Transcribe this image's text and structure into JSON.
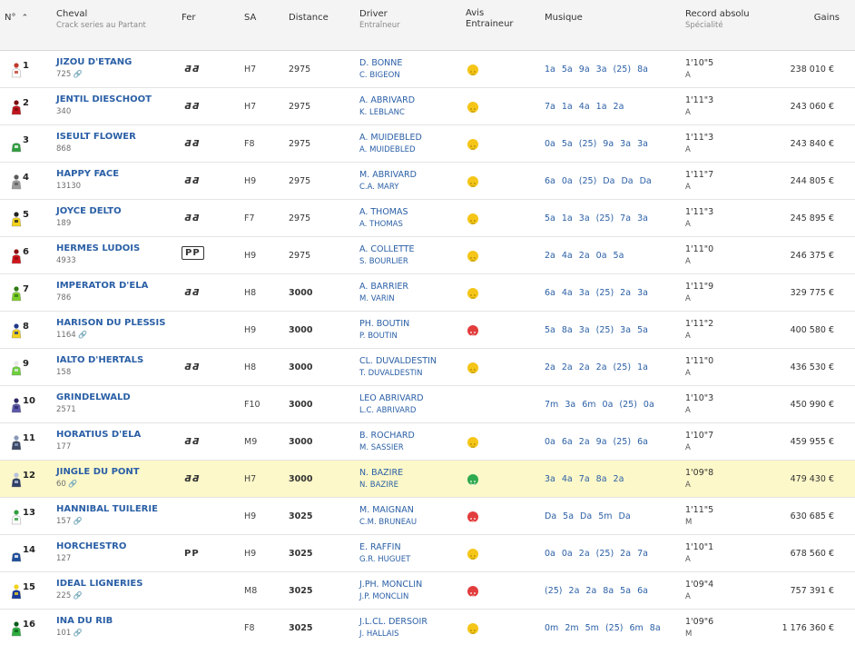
{
  "header": {
    "num_label": "N°",
    "horse_label": "Cheval",
    "horse_sub": "Crack series au Partant",
    "fer_label": "Fer",
    "sa_label": "SA",
    "distance_label": "Distance",
    "driver_label": "Driver",
    "driver_sub": "Entraîneur",
    "avis_label": "Avis",
    "avis_label2": "Entraineur",
    "musique_label": "Musique",
    "record_label": "Record absolu",
    "record_sub": "Spécialité",
    "gains_label": "Gains"
  },
  "colors": {
    "link": "#2a5fa6",
    "highlight": "#fdf8c9",
    "neutral": "#f5c518",
    "negative": "#e23d3d",
    "positive": "#2eaa4f"
  },
  "rows": [
    {
      "num": "1",
      "horse": "JIZOU D'ETANG",
      "sub": "725",
      "clip": "🔗",
      "fer": "ƋƋ",
      "fer_style": "italic",
      "sa": "H7",
      "distance": "2975",
      "bold": false,
      "driver": "D. BONNE",
      "trainer": "C. BIGEON",
      "avis": "neutral",
      "musique": "1a 5a 9a 3a (25) 8a",
      "record": "1'10\"5",
      "spec": "A",
      "gains": "238 010 €",
      "jockey_color": "#ffffff",
      "jockey_accent": "#c0392b"
    },
    {
      "num": "2",
      "horse": "JENTIL DIESCHOOT",
      "sub": "340",
      "clip": "",
      "fer": "ƋƋ",
      "fer_style": "italic",
      "sa": "H7",
      "distance": "2975",
      "bold": false,
      "driver": "A. ABRIVARD",
      "trainer": "K. LEBLANC",
      "avis": "neutral",
      "musique": "7a 1a 4a 1a 2a",
      "record": "1'11\"3",
      "spec": "A",
      "gains": "243 060 €",
      "jockey_color": "#c0161c",
      "jockey_accent": "#7a0d10"
    },
    {
      "num": "3",
      "horse": "ISEULT FLOWER",
      "sub": "868",
      "clip": "",
      "fer": "ƋƋ",
      "fer_style": "italic",
      "sa": "F8",
      "distance": "2975",
      "bold": false,
      "driver": "A. MUIDEBLED",
      "trainer": "A. MUIDEBLED",
      "avis": "neutral",
      "musique": "0a 5a (25) 9a 3a 3a",
      "record": "1'11\"3",
      "spec": "A",
      "gains": "243 840 €",
      "jockey_color": "#2f9e3f",
      "jockey_accent": "#ffffff"
    },
    {
      "num": "4",
      "horse": "HAPPY FACE",
      "sub": "13130",
      "clip": "",
      "fer": "ƋƋ",
      "fer_style": "italic",
      "sa": "H9",
      "distance": "2975",
      "bold": false,
      "driver": "M. ABRIVARD",
      "trainer": "C.A. MARY",
      "avis": "neutral",
      "musique": "6a 0a (25) Da Da Da",
      "record": "1'11\"7",
      "spec": "A",
      "gains": "244 805 €",
      "jockey_color": "#9a9a9a",
      "jockey_accent": "#5a5a5a"
    },
    {
      "num": "5",
      "horse": "JOYCE DELTO",
      "sub": "189",
      "clip": "",
      "fer": "ƋƋ",
      "fer_style": "italic",
      "sa": "F7",
      "distance": "2975",
      "bold": false,
      "driver": "A. THOMAS",
      "trainer": "A. THOMAS",
      "avis": "neutral",
      "musique": "5a 1a 3a (25) 7a 3a",
      "record": "1'11\"3",
      "spec": "A",
      "gains": "245 895 €",
      "jockey_color": "#f2d21b",
      "jockey_accent": "#222222"
    },
    {
      "num": "6",
      "horse": "HERMES LUDOIS",
      "sub": "4933",
      "clip": "",
      "fer": "PP",
      "fer_style": "boxed",
      "sa": "H9",
      "distance": "2975",
      "bold": false,
      "driver": "A. COLLETTE",
      "trainer": "S. BOURLIER",
      "avis": "neutral",
      "musique": "2a 4a 2a 0a 5a",
      "record": "1'11\"0",
      "spec": "A",
      "gains": "246 375 €",
      "jockey_color": "#d0161c",
      "jockey_accent": "#8c0d10"
    },
    {
      "num": "7",
      "horse": "IMPERATOR D'ELA",
      "sub": "786",
      "clip": "",
      "fer": "ƋƋ",
      "fer_style": "italic",
      "sa": "H8",
      "distance": "3000",
      "bold": true,
      "driver": "A. BARRIER",
      "trainer": "M. VARIN",
      "avis": "neutral",
      "musique": "6a 4a 3a (25) 2a 3a",
      "record": "1'11\"9",
      "spec": "A",
      "gains": "329 775 €",
      "jockey_color": "#7fcf2a",
      "jockey_accent": "#2f7a14"
    },
    {
      "num": "8",
      "horse": "HARISON DU PLESSIS",
      "sub": "1164",
      "clip": "🔗",
      "fer": "",
      "fer_style": "none",
      "sa": "H9",
      "distance": "3000",
      "bold": true,
      "driver": "PH. BOUTIN",
      "trainer": "P. BOUTIN",
      "avis": "negative",
      "musique": "5a 8a 3a (25) 3a 5a",
      "record": "1'11\"2",
      "spec": "A",
      "gains": "400 580 €",
      "jockey_color": "#f2d21b",
      "jockey_accent": "#1d3a8a"
    },
    {
      "num": "9",
      "horse": "IALTO D'HERTALS",
      "sub": "158",
      "clip": "",
      "fer": "ƋƋ",
      "fer_style": "italic",
      "sa": "H8",
      "distance": "3000",
      "bold": true,
      "driver": "CL. DUVALDESTIN",
      "trainer": "T. DUVALDESTIN",
      "avis": "neutral",
      "musique": "2a 2a 2a 2a (25) 1a",
      "record": "1'11\"0",
      "spec": "A",
      "gains": "436 530 €",
      "jockey_color": "#6bcf3a",
      "jockey_accent": "#e8e8e8"
    },
    {
      "num": "10",
      "horse": "GRINDELWALD",
      "sub": "2571",
      "clip": "",
      "fer": "",
      "fer_style": "none",
      "sa": "F10",
      "distance": "3000",
      "bold": true,
      "driver": "LEO ABRIVARD",
      "trainer": "L.C. ABRIVARD",
      "avis": "none",
      "musique": "7m 3a 6m 0a (25) 0a",
      "record": "1'10\"3",
      "spec": "A",
      "gains": "450 990 €",
      "jockey_color": "#5a57a8",
      "jockey_accent": "#2c2a66"
    },
    {
      "num": "11",
      "horse": "HORATIUS D'ELA",
      "sub": "177",
      "clip": "",
      "fer": "ƋƋ",
      "fer_style": "italic",
      "sa": "M9",
      "distance": "3000",
      "bold": true,
      "driver": "B. ROCHARD",
      "trainer": "M. SASSIER",
      "avis": "neutral",
      "musique": "0a 6a 2a 9a (25) 6a",
      "record": "1'10\"7",
      "spec": "A",
      "gains": "459 955 €",
      "jockey_color": "#3c4a66",
      "jockey_accent": "#8a9ab8"
    },
    {
      "num": "12",
      "horse": "JINGLE DU PONT",
      "sub": "60",
      "clip": "🔗",
      "fer": "ƋƋ",
      "fer_style": "italic",
      "sa": "H7",
      "distance": "3000",
      "bold": true,
      "driver": "N. BAZIRE",
      "trainer": "N. BAZIRE",
      "avis": "positive",
      "musique": "3a 4a 7a 8a 2a",
      "record": "1'09\"8",
      "spec": "A",
      "gains": "479 430 €",
      "jockey_color": "#2f3f66",
      "jockey_accent": "#b9c4dc",
      "highlight": true
    },
    {
      "num": "13",
      "horse": "HANNIBAL TUILERIE",
      "sub": "157",
      "clip": "🔗",
      "fer": "",
      "fer_style": "none",
      "sa": "H9",
      "distance": "3025",
      "bold": true,
      "driver": "M. MAIGNAN",
      "trainer": "C.M. BRUNEAU",
      "avis": "negative",
      "musique": "Da 5a Da 5m Da",
      "record": "1'11\"5",
      "spec": "M",
      "gains": "630 685 €",
      "jockey_color": "#ffffff",
      "jockey_accent": "#2f9e3f"
    },
    {
      "num": "14",
      "horse": "HORCHESTRO",
      "sub": "127",
      "clip": "",
      "fer": "PP",
      "fer_style": "plain",
      "sa": "H9",
      "distance": "3025",
      "bold": true,
      "driver": "E. RAFFIN",
      "trainer": "G.R. HUGUET",
      "avis": "neutral",
      "musique": "0a 0a 2a (25) 2a 7a",
      "record": "1'10\"1",
      "spec": "A",
      "gains": "678 560 €",
      "jockey_color": "#1e4f9c",
      "jockey_accent": "#ffffff"
    },
    {
      "num": "15",
      "horse": "IDEAL LIGNERIES",
      "sub": "225",
      "clip": "🔗",
      "fer": "",
      "fer_style": "none",
      "sa": "M8",
      "distance": "3025",
      "bold": true,
      "driver": "J.PH. MONCLIN",
      "trainer": "J.P. MONCLIN",
      "avis": "negative",
      "musique": "(25) 2a 2a 8a 5a 6a",
      "record": "1'09\"4",
      "spec": "A",
      "gains": "757 391 €",
      "jockey_color": "#1a3a9a",
      "jockey_accent": "#f2d21b"
    },
    {
      "num": "16",
      "horse": "INA DU RIB",
      "sub": "101",
      "clip": "🔗",
      "fer": "",
      "fer_style": "none",
      "sa": "F8",
      "distance": "3025",
      "bold": true,
      "driver": "J.L.CL. DERSOIR",
      "trainer": "J. HALLAIS",
      "avis": "neutral",
      "musique": "0m 2m 5m (25) 6m 8a",
      "record": "1'09\"6",
      "spec": "M",
      "gains": "1 176 360 €",
      "jockey_color": "#2fae3f",
      "jockey_accent": "#0d5c1a"
    }
  ]
}
